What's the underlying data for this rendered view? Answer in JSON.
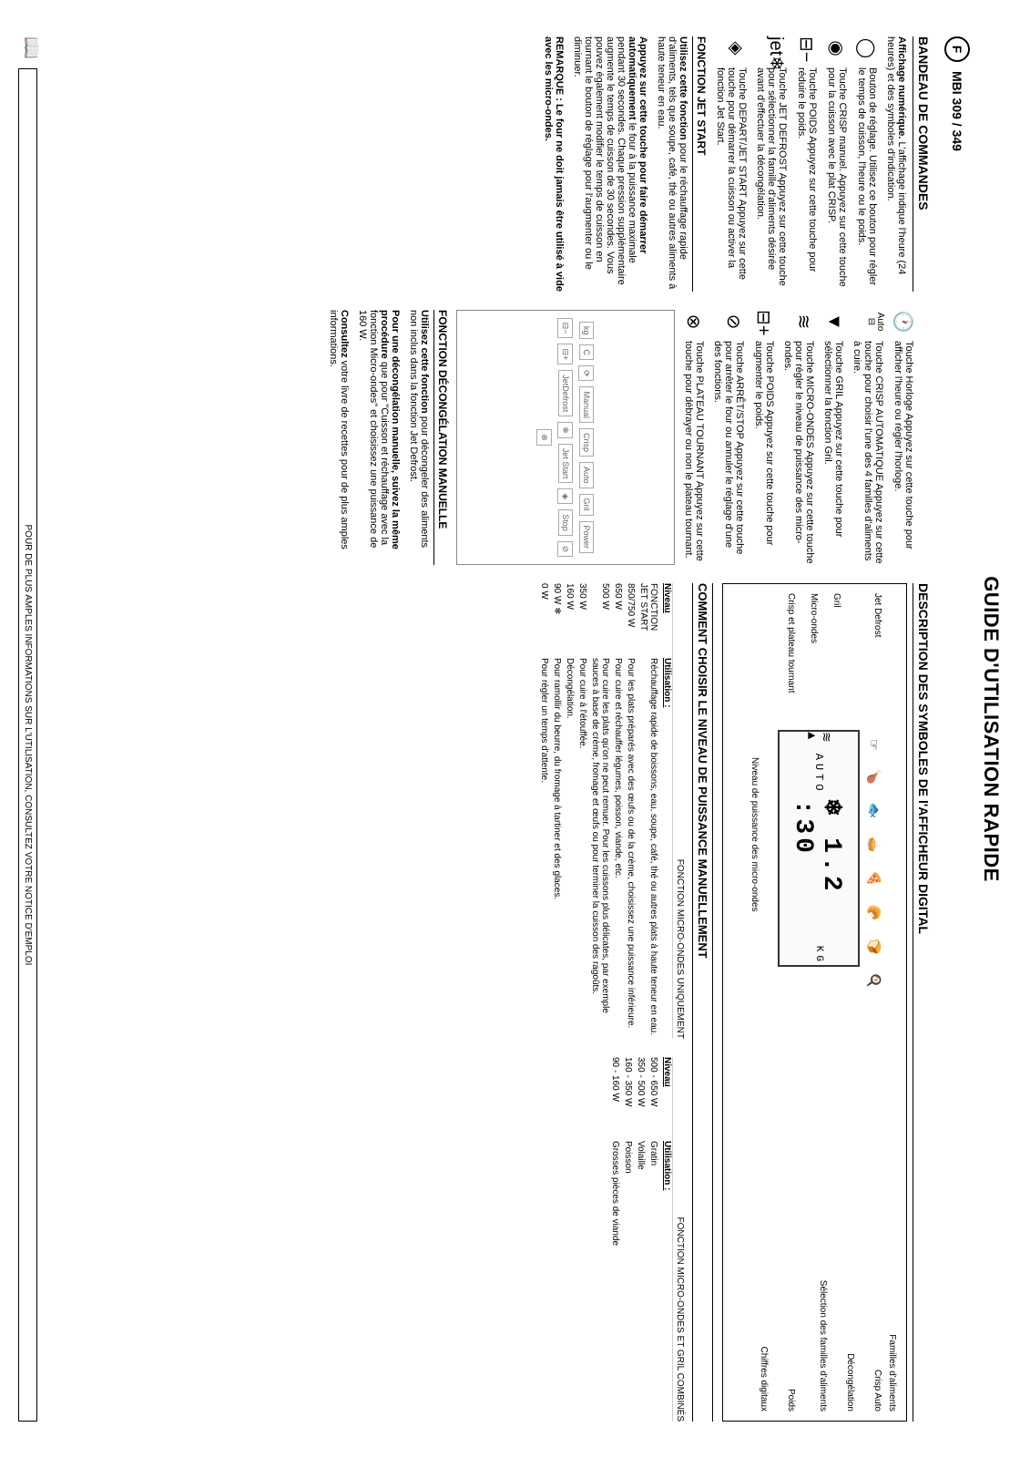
{
  "header": {
    "title": "GUIDE D'UTILISATION RAPIDE",
    "lang_letter": "F",
    "model": "MBI 309 / 349"
  },
  "panel": {
    "title": "BANDEAU DE COMMANDES",
    "display": {
      "title": "Affichage numérique.",
      "desc": "L'affichage indique l'heure (24 heures) et des symboles d'indication."
    },
    "knob": {
      "title": "Bouton de réglage.",
      "desc": "Utilisez ce bouton pour régler le temps de cuisson, l'heure ou le poids."
    },
    "crisp_manual": {
      "title": "Touche CRISP manuel.",
      "desc": "Appuyez sur cette touche pour la cuisson avec le plat CRISP."
    },
    "weight1": {
      "title": "Touche POIDS",
      "desc": "Appuyez sur cette touche pour réduire le poids."
    },
    "jetdefrost": {
      "title": "Touche JET DEFROST",
      "desc": "Appuyez sur cette touche pour sélectionner la famille d'aliments désirée avant d'effectuer la décongélation."
    },
    "start": {
      "title": "Touche DEPART/JET START",
      "desc": "Appuyez sur cette touche pour démarrer la cuisson ou activer la fonction Jet Start."
    },
    "jetstart_fn": {
      "title": "FONCTION JET START",
      "desc1": "Utilisez cette fonction",
      "desc1b": "pour le réchauffage rapide d'aliments, tels que soupe, café, thé ou autres aliments à haute teneur en eau.",
      "desc2": "Appuyez sur cette touche pour faire démarrer automatiquement",
      "desc2b": " le four à la puissance maximale pendant 30 secondes. Chaque pression supplémentaire augmente le temps de cuisson de 30 secondes. Vous pouvez également modifier le temps de cuisson en tournant le bouton de réglage pour l'augmenter ou le diminuer."
    },
    "clock": {
      "title": "Touche Horloge",
      "desc": "Appuyez sur cette touche pour afficher l'heure ou régler l'horloge."
    },
    "crisp": {
      "title": "Touche CRISP AUTOMATIQUE",
      "desc": "Appuyez sur cette touche pour choisir l'une des 4 familles d'aliments à cuire."
    },
    "gril": {
      "title": "Touche GRIL",
      "desc": "Appuyez sur cette touche pour sélectionner la fonction Gril."
    },
    "micro": {
      "title": "Touche MICRO-ONDES",
      "desc": "Appuyez sur cette touche pour régler le niveau de puissance des micro-ondes."
    },
    "weight2": {
      "title": "Touche POIDS",
      "desc": "Appuyez sur cette touche pour augmenter le poids."
    },
    "stop": {
      "title": "Touche ARRÊT/STOP",
      "desc": "Appuyez sur cette touche pour arrêter le four ou annuler le réglage d'une des fonctions."
    },
    "turntable": {
      "title": "Touche PLATEAU TOURNANT",
      "desc": "Appuyez sur cette touche pour débrayer ou non le plateau tournant."
    },
    "defrost_fn": {
      "title": "FONCTION DÉCONGÉLATION MANUELLE",
      "desc1": "Utilisez cette fonction",
      "desc1b": " pour décongeler des aliments non inclus dans la fonction Jet Defrost.",
      "desc2": "Pour une décongélation manuelle, suivez la même procédure",
      "desc2b": " que pour \"Cuisson et réchauffage avec la fonction Micro-ondes\" et choisissez une puissance de 160 W.",
      "desc3": "Consultez",
      "desc3b": " votre livre de recettes pour de plus amples informations."
    },
    "diagram_labels": {
      "manual": "Manual",
      "crisp": "Crisp",
      "gril": "Gril",
      "auto": "Auto",
      "power": "Power",
      "jetdefrost": "JetDefrost",
      "jetstart": "Jet Start",
      "stop": "Stop",
      "kg": "kg",
      "c": "C"
    }
  },
  "symbols": {
    "title": "DESCRIPTION DES SYMBOLES DE l'AFFICHEUR DIGITAL",
    "families_label": "Familles d'aliments",
    "items": {
      "jetdefrost": "Jet Defrost",
      "crispauto": "Crisp Auto",
      "decongelation": "Décongélation",
      "gril": "Gril",
      "micro": "Micro-ondes",
      "crisp": "Crisp et plateau tournant",
      "selection": "Sélection des familles d'aliments",
      "poids": "Poids",
      "kg": "KG",
      "chiffres": "Chiffres digitaux",
      "auto": "AUTO",
      "power_label": "Niveau de puissance des micro-ondes",
      "digits": "12:30"
    }
  },
  "power": {
    "title": "COMMENT CHOISIR LE NIVEAU DE PUISSANCE MANUELLEMENT",
    "mw_only": "FONCTION MICRO-ONDES UNIQUEMENT",
    "mw_gril": "FONCTION MICRO-ONDES ET GRIL COMBINÉS",
    "h_niveau": "Niveau",
    "h_util": "Utilisation :",
    "rows_mw": [
      {
        "w": "FONCTION JET START",
        "u": "Réchauffage rapide de boissons, eau, soupe, café, thé ou autres plats à haute teneur en eau."
      },
      {
        "w": "850/750 W",
        "u": "Pour les plats préparés avec des œufs ou de la crème, choisissez une puissance inférieure."
      },
      {
        "w": "650 W",
        "u": "Pour cuire et réchauffer légumes, poisson, viande, etc."
      },
      {
        "w": "500 W",
        "u": "Pour cuire les plats qu'on ne peut remuer. Pour les cuissons plus délicates, par exemple sauces à base de crème, fromage et œufs ou pour terminer la cuisson des ragoûts."
      },
      {
        "w": "350 W",
        "u": "Pour cuire à l'étouffée."
      },
      {
        "w": "160 W",
        "u": "Décongélation."
      },
      {
        "w": "90 W   ❄",
        "u": "Pour ramollir du beurre, du fromage à tartiner et des glaces."
      },
      {
        "w": "0 W",
        "u": "Pour régler un temps d'attente."
      }
    ],
    "rows_gril": [
      {
        "w": "500 - 650 W",
        "u": "Gratin"
      },
      {
        "w": "350 - 500 W",
        "u": "Volaille"
      },
      {
        "w": "160 - 350 W",
        "u": "Poisson"
      },
      {
        "w": "90 - 160 W",
        "u": "Grosses pièces de viande"
      }
    ]
  },
  "remark": "REMARQUE : Le four ne doit jamais être utilisé à vide avec les micro-ondes.",
  "footer": "POUR DE PLUS AMPLES INFORMATIONS SUR L'UTILISATION, CONSULTEZ VOTRE NOTICE D'EMPLOI"
}
